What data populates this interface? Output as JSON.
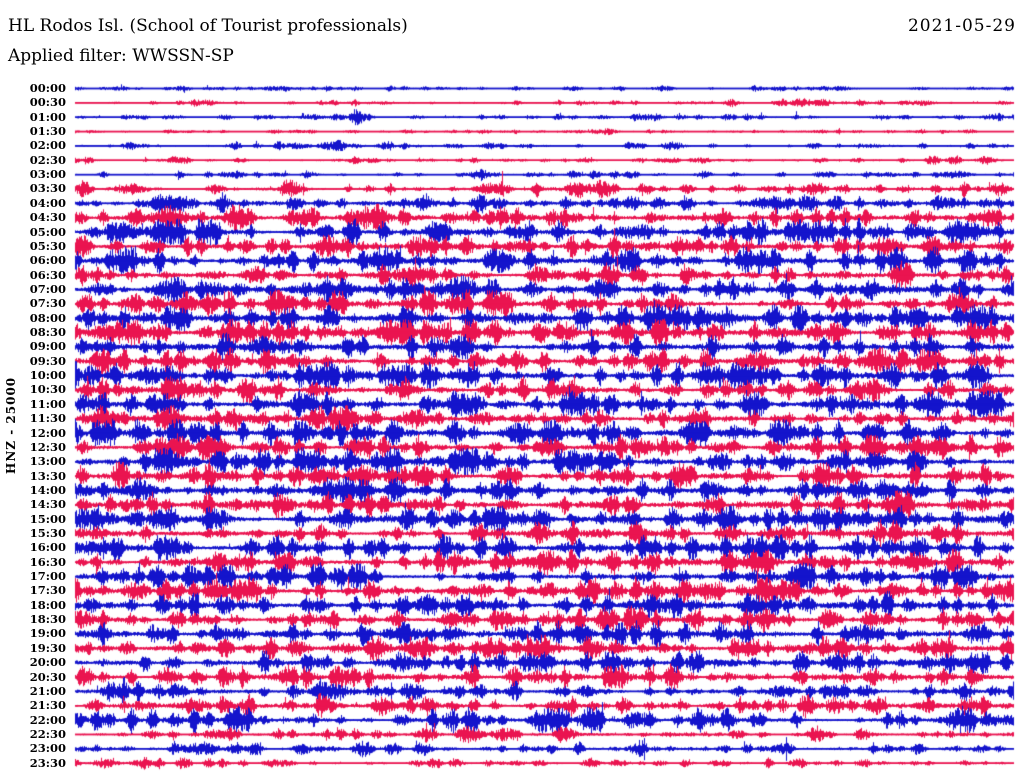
{
  "header": {
    "title": "HL Rodos Isl. (School of Tourist professionals)",
    "date": "2021-05-29",
    "filter_label": "Applied filter: WWSSN-SP"
  },
  "chart_data": {
    "type": "line",
    "subtype": "seismogram-dayplot",
    "title": "HL Rodos Isl. (School of Tourist professionals)",
    "date": "2021-05-29",
    "applied_filter": "WWSSN-SP",
    "station_channel": "HNZ",
    "scale": 25000,
    "ylabel": "HNZ - 25000",
    "minutes_per_line": 30,
    "time_start": "00:00",
    "time_end": "23:30",
    "background": "#ffffff",
    "text_color": "#000000",
    "trace_colors": [
      "#1414cc",
      "#ea1450"
    ],
    "legend": "alternating line colors per half-hour trace (blue, red)",
    "rows": [
      {
        "time": "00:00",
        "color": 0,
        "amp": 0.1,
        "events": [
          [
            0.21,
            10,
            1.2
          ],
          [
            0.62,
            8,
            0.8
          ],
          [
            0.8,
            9,
            0.9
          ]
        ]
      },
      {
        "time": "00:30",
        "color": 1,
        "amp": 0.1,
        "events": [
          [
            0.14,
            12,
            1.4
          ],
          [
            0.55,
            8,
            0.7
          ],
          [
            0.89,
            10,
            1.2
          ]
        ]
      },
      {
        "time": "01:00",
        "color": 0,
        "amp": 0.12,
        "events": [
          [
            0.3,
            5,
            4.5
          ],
          [
            0.56,
            8,
            0.9
          ]
        ]
      },
      {
        "time": "01:30",
        "color": 1,
        "amp": 0.08,
        "events": [
          [
            0.12,
            8,
            1.0
          ],
          [
            0.57,
            7,
            1.2
          ],
          [
            0.9,
            4,
            2.0
          ]
        ]
      },
      {
        "time": "02:00",
        "color": 0,
        "amp": 0.12,
        "events": [
          [
            0.28,
            5,
            2.8
          ],
          [
            0.44,
            8,
            1.0
          ],
          [
            0.85,
            7,
            0.9
          ]
        ]
      },
      {
        "time": "02:30",
        "color": 1,
        "amp": 0.1,
        "events": [
          [
            0.11,
            9,
            1.8
          ],
          [
            0.3,
            7,
            1.1
          ],
          [
            0.67,
            5,
            1.6
          ],
          [
            0.97,
            8,
            1.5
          ]
        ]
      },
      {
        "time": "03:00",
        "color": 0,
        "amp": 0.14,
        "events": [
          [
            0.43,
            7,
            2.2
          ],
          [
            0.67,
            6,
            1.2
          ],
          [
            0.93,
            7,
            1.4
          ]
        ]
      },
      {
        "time": "03:30",
        "color": 1,
        "amp": 0.22,
        "events": [
          [
            0.06,
            10,
            1.4
          ],
          [
            0.23,
            9,
            1.3
          ],
          [
            0.44,
            8,
            1.5
          ],
          [
            0.55,
            8,
            1.2
          ]
        ]
      },
      {
        "time": "04:00",
        "color": 0,
        "amp": 0.3,
        "events": [
          [
            0.09,
            10,
            1.2
          ],
          [
            0.37,
            9,
            1.0
          ],
          [
            0.73,
            7,
            1.1
          ]
        ]
      },
      {
        "time": "04:30",
        "color": 1,
        "amp": 0.4,
        "events": [
          [
            0.1,
            14,
            1.3
          ],
          [
            0.17,
            10,
            1.4
          ],
          [
            0.3,
            9,
            1.0
          ]
        ]
      },
      {
        "time": "05:00",
        "color": 0,
        "amp": 0.42,
        "events": [
          [
            0.09,
            10,
            1.2
          ],
          [
            0.95,
            12,
            1.3
          ]
        ]
      },
      {
        "time": "05:30",
        "color": 1,
        "amp": 0.36,
        "events": [
          [
            0.27,
            8,
            1.4
          ]
        ]
      },
      {
        "time": "06:00",
        "color": 0,
        "amp": 0.42,
        "events": [
          [
            0.05,
            10,
            1.2
          ],
          [
            0.33,
            8,
            1.1
          ]
        ]
      },
      {
        "time": "06:30",
        "color": 1,
        "amp": 0.4,
        "events": [
          [
            0.35,
            9,
            1.0
          ]
        ]
      },
      {
        "time": "07:00",
        "color": 0,
        "amp": 0.44,
        "events": [
          [
            0.1,
            12,
            1.2
          ],
          [
            0.56,
            8,
            0.9
          ]
        ]
      },
      {
        "time": "07:30",
        "color": 1,
        "amp": 0.42,
        "events": [
          [
            0.12,
            9,
            1.0
          ],
          [
            0.94,
            9,
            1.1
          ]
        ]
      },
      {
        "time": "08:00",
        "color": 0,
        "amp": 0.44,
        "events": [
          [
            0.63,
            8,
            1.2
          ],
          [
            0.96,
            8,
            1.2
          ]
        ]
      },
      {
        "time": "08:30",
        "color": 1,
        "amp": 0.42,
        "events": [
          [
            0.06,
            9,
            1.3
          ],
          [
            0.33,
            8,
            0.9
          ]
        ]
      },
      {
        "time": "09:00",
        "color": 0,
        "amp": 0.44,
        "events": [
          [
            0.2,
            9,
            1.2
          ],
          [
            0.41,
            8,
            1.0
          ]
        ]
      },
      {
        "time": "09:30",
        "color": 1,
        "amp": 0.42,
        "events": [
          [
            0.03,
            8,
            1.1
          ],
          [
            0.73,
            8,
            1.0
          ]
        ]
      },
      {
        "time": "10:00",
        "color": 0,
        "amp": 0.44,
        "events": [
          [
            0.08,
            9,
            1.1
          ],
          [
            0.73,
            8,
            1.2
          ]
        ]
      },
      {
        "time": "10:30",
        "color": 1,
        "amp": 0.42,
        "events": [
          [
            0.11,
            9,
            1.2
          ],
          [
            0.85,
            8,
            1.1
          ]
        ]
      },
      {
        "time": "11:00",
        "color": 0,
        "amp": 0.46,
        "events": [
          [
            0.41,
            8,
            1.3
          ],
          [
            0.72,
            8,
            1.1
          ],
          [
            0.91,
            8,
            1.0
          ]
        ]
      },
      {
        "time": "11:30",
        "color": 1,
        "amp": 0.44,
        "events": [
          [
            0.03,
            9,
            1.2
          ],
          [
            0.36,
            8,
            1.0
          ]
        ]
      },
      {
        "time": "12:00",
        "color": 0,
        "amp": 0.46,
        "events": [
          [
            0.24,
            6,
            1.6
          ],
          [
            0.47,
            8,
            1.0
          ]
        ]
      },
      {
        "time": "12:30",
        "color": 1,
        "amp": 0.44,
        "events": [
          [
            0.1,
            9,
            1.1
          ],
          [
            0.9,
            8,
            1.0
          ]
        ]
      },
      {
        "time": "13:00",
        "color": 0,
        "amp": 0.46,
        "events": [
          [
            0.1,
            9,
            1.2
          ],
          [
            0.53,
            8,
            1.1
          ]
        ]
      },
      {
        "time": "13:30",
        "color": 1,
        "amp": 0.44,
        "events": [
          [
            0.26,
            8,
            1.1
          ],
          [
            0.8,
            8,
            1.0
          ]
        ]
      },
      {
        "time": "14:00",
        "color": 0,
        "amp": 0.46,
        "events": [
          [
            0.07,
            9,
            1.2
          ],
          [
            0.68,
            8,
            1.0
          ]
        ]
      },
      {
        "time": "14:30",
        "color": 1,
        "amp": 0.44,
        "events": [
          [
            0.22,
            8,
            1.1
          ],
          [
            0.87,
            8,
            1.0
          ]
        ]
      },
      {
        "time": "15:00",
        "color": 0,
        "amp": 0.46,
        "events": [
          [
            0.02,
            9,
            1.2
          ],
          [
            0.45,
            7,
            1.3
          ]
        ]
      },
      {
        "time": "15:30",
        "color": 1,
        "amp": 0.44,
        "events": [
          [
            0.6,
            8,
            1.0
          ]
        ]
      },
      {
        "time": "16:00",
        "color": 0,
        "amp": 0.46,
        "events": [
          [
            0.1,
            8,
            1.3
          ]
        ]
      },
      {
        "time": "16:30",
        "color": 1,
        "amp": 0.44,
        "events": [
          [
            0.5,
            8,
            0.9
          ]
        ]
      },
      {
        "time": "17:00",
        "color": 0,
        "amp": 0.43,
        "events": [
          [
            0.3,
            8,
            0.9
          ]
        ]
      },
      {
        "time": "17:30",
        "color": 1,
        "amp": 0.44,
        "events": [
          [
            0.55,
            6,
            1.5
          ]
        ]
      },
      {
        "time": "18:00",
        "color": 0,
        "amp": 0.46,
        "events": [
          [
            0.72,
            6,
            1.5
          ]
        ]
      },
      {
        "time": "18:30",
        "color": 1,
        "amp": 0.42,
        "events": [
          [
            0.4,
            8,
            0.9
          ]
        ]
      },
      {
        "time": "19:00",
        "color": 0,
        "amp": 0.42,
        "events": [
          [
            0.35,
            6,
            1.5
          ]
        ]
      },
      {
        "time": "19:30",
        "color": 1,
        "amp": 0.4,
        "events": [
          [
            0.44,
            7,
            1.3
          ]
        ]
      },
      {
        "time": "20:00",
        "color": 0,
        "amp": 0.42,
        "events": [
          [
            0.57,
            6,
            1.5
          ]
        ]
      },
      {
        "time": "20:30",
        "color": 1,
        "amp": 0.38,
        "events": [
          [
            0.1,
            8,
            1.1
          ]
        ]
      },
      {
        "time": "21:00",
        "color": 0,
        "amp": 0.33,
        "events": [
          [
            0.75,
            8,
            1.0
          ]
        ]
      },
      {
        "time": "21:30",
        "color": 1,
        "amp": 0.33,
        "events": [
          [
            0.13,
            8,
            1.1
          ],
          [
            0.33,
            8,
            1.2
          ]
        ]
      },
      {
        "time": "22:00",
        "color": 0,
        "amp": 0.35,
        "events": [
          [
            0.175,
            7,
            2.6
          ],
          [
            0.6,
            8,
            0.9
          ]
        ]
      },
      {
        "time": "22:30",
        "color": 1,
        "amp": 0.2,
        "events": [
          [
            0.15,
            7,
            1.3
          ],
          [
            0.45,
            7,
            1.0
          ],
          [
            0.79,
            7,
            1.4
          ]
        ]
      },
      {
        "time": "23:00",
        "color": 0,
        "amp": 0.2,
        "events": [
          [
            0.6,
            8,
            1.2
          ],
          [
            0.75,
            8,
            1.3
          ]
        ]
      },
      {
        "time": "23:30",
        "color": 1,
        "amp": 0.16,
        "events": [
          [
            0.07,
            7,
            1.2
          ],
          [
            0.22,
            7,
            1.3
          ],
          [
            0.55,
            7,
            1.0
          ]
        ]
      }
    ]
  }
}
